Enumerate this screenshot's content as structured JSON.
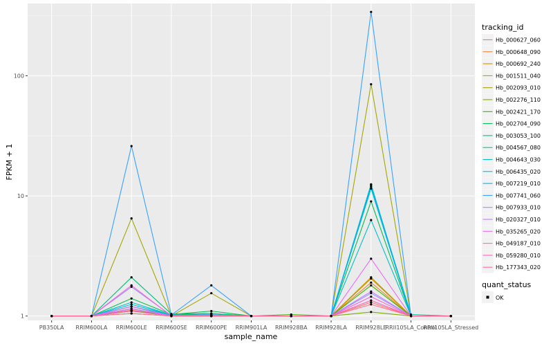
{
  "chart_data": {
    "type": "line",
    "xlabel": "sample_name",
    "ylabel": "FPKM + 1",
    "y_scale": "log10",
    "ylim": [
      0.92,
      400
    ],
    "y_ticks": [
      1,
      10,
      100
    ],
    "y_tick_labels": [
      "1",
      "10",
      "100"
    ],
    "categories": [
      "PB350LA",
      "RRIM600LA",
      "RRIM600LE",
      "RRIM600SE",
      "RRIM600PE",
      "RRIM901LA",
      "RRIM928BA",
      "RRIM928LA",
      "RRIM928LE",
      "RRII105LA_Control",
      "RRII105LA_Stressed"
    ],
    "legend_title": "tracking_id",
    "legend_position": "right",
    "grid": true,
    "point_legend_title": "quant_status",
    "point_legend_label": "OK",
    "series": [
      {
        "name": "Hb_000627_060",
        "color": "#F8766D",
        "values": [
          1,
          1,
          1.12,
          1,
          1,
          1,
          1,
          1,
          1.3,
          1,
          1
        ]
      },
      {
        "name": "Hb_000648_090",
        "color": "#EA8331",
        "values": [
          1,
          1,
          1.15,
          1,
          1,
          1,
          1,
          1,
          1.9,
          1,
          1
        ]
      },
      {
        "name": "Hb_000692_240",
        "color": "#D89000",
        "values": [
          1,
          1,
          1.2,
          1,
          1,
          1,
          1,
          1,
          2.05,
          1,
          1
        ]
      },
      {
        "name": "Hb_001511_040",
        "color": "#C09B00",
        "values": [
          1,
          1,
          1.1,
          1,
          1,
          1,
          1,
          1,
          2.1,
          1,
          1
        ]
      },
      {
        "name": "Hb_002093_010",
        "color": "#A3A500",
        "values": [
          1,
          1,
          6.5,
          1,
          1.55,
          1,
          1,
          1,
          85,
          1,
          1
        ]
      },
      {
        "name": "Hb_002276_110",
        "color": "#7CAE00",
        "values": [
          1,
          1,
          1.05,
          1,
          1,
          1,
          1,
          1,
          1.08,
          1,
          1
        ]
      },
      {
        "name": "Hb_002421_170",
        "color": "#39B600",
        "values": [
          1,
          1,
          1.1,
          1.02,
          1.05,
          1,
          1.03,
          1,
          1.8,
          1,
          1
        ]
      },
      {
        "name": "Hb_002704_090",
        "color": "#00BB4E",
        "values": [
          1,
          1,
          1.4,
          1.03,
          1.1,
          1,
          1,
          1,
          9,
          1,
          1
        ]
      },
      {
        "name": "Hb_003053_100",
        "color": "#00BF7D",
        "values": [
          1,
          1,
          2.1,
          1.04,
          1.05,
          1,
          1,
          1,
          12.5,
          1,
          1
        ]
      },
      {
        "name": "Hb_004567_080",
        "color": "#00C1A3",
        "values": [
          1,
          1,
          1.2,
          1.02,
          1.02,
          1,
          1,
          1,
          12,
          1.03,
          1
        ]
      },
      {
        "name": "Hb_004643_030",
        "color": "#00BFC4",
        "values": [
          1,
          1,
          1.3,
          1.02,
          1.02,
          1,
          1,
          1,
          6.3,
          1,
          1
        ]
      },
      {
        "name": "Hb_006435_020",
        "color": "#00BAE0",
        "values": [
          1,
          1,
          1.25,
          1.02,
          1.03,
          1,
          1,
          1,
          11.5,
          1,
          1
        ]
      },
      {
        "name": "Hb_007219_010",
        "color": "#00B0F6",
        "values": [
          1,
          1,
          1.15,
          1.01,
          1.02,
          1,
          1,
          1,
          12.3,
          1,
          1
        ]
      },
      {
        "name": "Hb_007741_060",
        "color": "#35A2FF",
        "values": [
          1,
          1,
          26,
          1.02,
          1.8,
          1,
          1,
          1,
          340,
          1,
          1
        ]
      },
      {
        "name": "Hb_007933_010",
        "color": "#9590FF",
        "values": [
          1,
          1,
          1.75,
          1.01,
          1.02,
          1,
          1,
          1,
          1.55,
          1,
          1
        ]
      },
      {
        "name": "Hb_020327_010",
        "color": "#C77CFF",
        "values": [
          1,
          1,
          1.2,
          1,
          1.01,
          1,
          1,
          1,
          1.6,
          1,
          1
        ]
      },
      {
        "name": "Hb_035265_020",
        "color": "#E76BF3",
        "values": [
          1,
          1,
          1.15,
          1,
          1,
          1,
          1,
          1,
          3,
          1,
          1
        ]
      },
      {
        "name": "Hb_049187_010",
        "color": "#FA62DB",
        "values": [
          1,
          1,
          1.8,
          1,
          1.01,
          1,
          1,
          1,
          1.45,
          1,
          1
        ]
      },
      {
        "name": "Hb_059280_010",
        "color": "#FF62BC",
        "values": [
          1,
          1,
          1.1,
          1,
          1,
          1,
          1,
          1,
          1.35,
          1,
          1
        ]
      },
      {
        "name": "Hb_177343_020",
        "color": "#FF6C91",
        "values": [
          1,
          1,
          1.05,
          1,
          1,
          1,
          1,
          1,
          1.25,
          1,
          1
        ]
      }
    ]
  }
}
